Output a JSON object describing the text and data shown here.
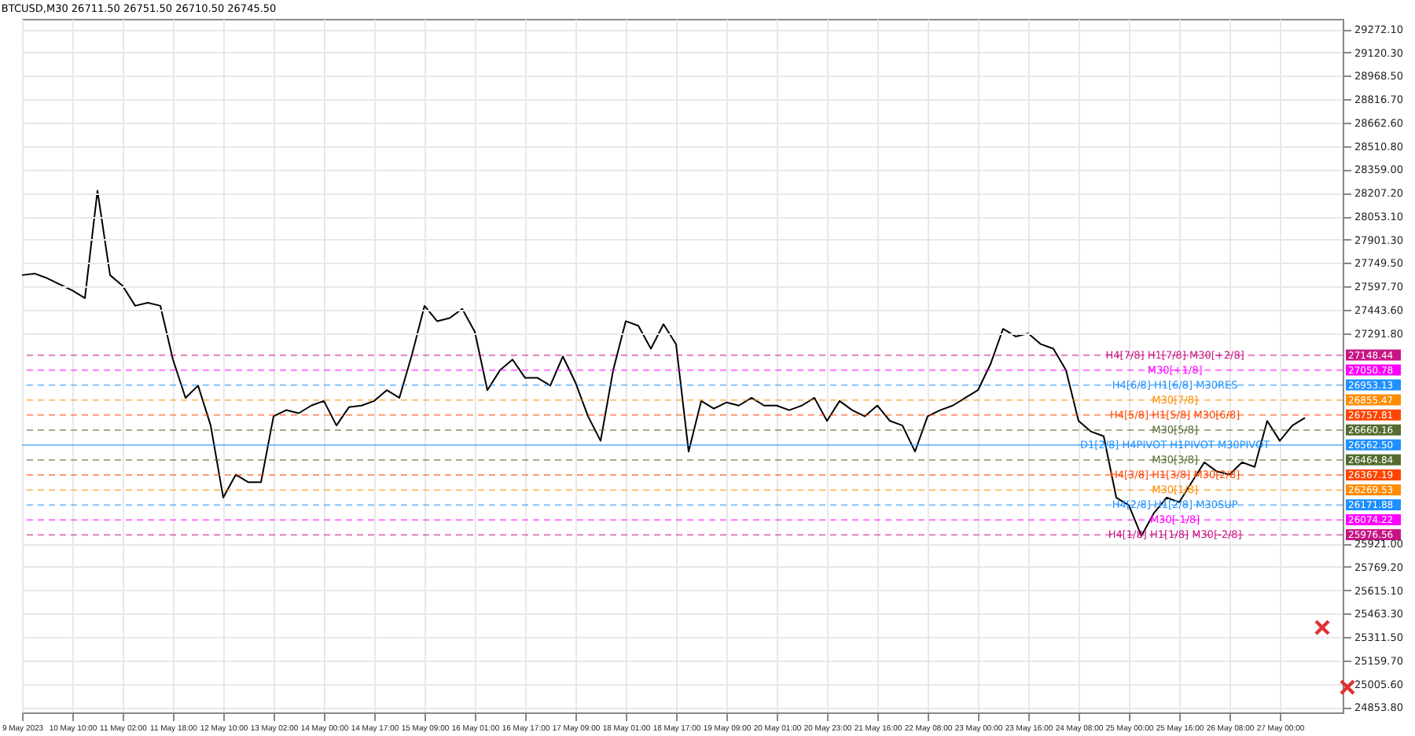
{
  "chart_data": {
    "type": "line",
    "title": "BTCUSD,M30  26711.50 26751.50 26710.50 26745.50",
    "categories": [
      "9 May 2023",
      null,
      null,
      null,
      "10 May 10:00",
      null,
      null,
      null,
      "11 May 02:00",
      null,
      null,
      null,
      "11 May 18:00",
      null,
      null,
      null,
      "12 May 10:00",
      null,
      null,
      null,
      "13 May 02:00",
      null,
      null,
      null,
      "14 May 00:00",
      null,
      null,
      null,
      "14 May 17:00",
      null,
      null,
      null,
      "15 May 09:00",
      null,
      null,
      null,
      "16 May 01:00",
      null,
      null,
      null,
      "16 May 17:00",
      null,
      null,
      null,
      "17 May 09:00",
      null,
      null,
      null,
      "18 May 01:00",
      null,
      null,
      null,
      "18 May 17:00",
      null,
      null,
      null,
      "19 May 09:00",
      null,
      null,
      null,
      "20 May 01:00",
      null,
      null,
      null,
      "20 May 23:00",
      null,
      null,
      null,
      "21 May 16:00",
      null,
      null,
      null,
      "22 May 08:00",
      null,
      null,
      null,
      "23 May 00:00",
      null,
      null,
      null,
      "23 May 16:00",
      null,
      null,
      null,
      "24 May 08:00",
      null,
      null,
      null,
      "25 May 00:00",
      null,
      null,
      null,
      "25 May 16:00",
      null,
      null,
      null,
      "26 May 08:00",
      null,
      null,
      null,
      "27 May 00:00",
      null,
      null,
      null,
      null,
      null
    ],
    "series": [
      {
        "color": "#000000",
        "values": [
          27670,
          27680,
          27650,
          27610,
          27570,
          27520,
          28220,
          27670,
          27600,
          27470,
          27490,
          27470,
          27120,
          26870,
          26950,
          26690,
          26220,
          26370,
          26320,
          26320,
          26750,
          26790,
          26770,
          26820,
          26850,
          26690,
          26810,
          26820,
          26850,
          26920,
          26870,
          27150,
          27470,
          27370,
          27390,
          27450,
          27300,
          26920,
          27050,
          27120,
          27000,
          27000,
          26950,
          27140,
          26970,
          26750,
          26590,
          27050,
          27370,
          27340,
          27190,
          27350,
          27220,
          26520,
          26850,
          26800,
          26840,
          26820,
          26870,
          26820,
          26820,
          26790,
          26820,
          26870,
          26720,
          26850,
          26790,
          26750,
          26820,
          26720,
          26690,
          26520,
          26750,
          26790,
          26820,
          26870,
          26920,
          27090,
          27320,
          27270,
          27290,
          27220,
          27190,
          27050,
          26720,
          26650,
          26620,
          26220,
          26170,
          25970,
          26120,
          26220,
          26190,
          26320,
          26450,
          26390,
          26370,
          26450,
          26420,
          26720,
          26590,
          26690,
          26740,
          null,
          null,
          null
        ]
      }
    ],
    "ylim": [
      24820,
      29340
    ],
    "yticks": [
      {
        "value": 29272.1,
        "label": "29272.10"
      },
      {
        "value": 29120.3,
        "label": "29120.30"
      },
      {
        "value": 28968.5,
        "label": "28968.50"
      },
      {
        "value": 28816.7,
        "label": "28816.70"
      },
      {
        "value": 28662.6,
        "label": "28662.60"
      },
      {
        "value": 28510.8,
        "label": "28510.80"
      },
      {
        "value": 28359,
        "label": "28359.00"
      },
      {
        "value": 28207.2,
        "label": "28207.20"
      },
      {
        "value": 28053.1,
        "label": "28053.10"
      },
      {
        "value": 27901.3,
        "label": "27901.30"
      },
      {
        "value": 27749.5,
        "label": "27749.50"
      },
      {
        "value": 27597.7,
        "label": "27597.70"
      },
      {
        "value": 27443.6,
        "label": "27443.60"
      },
      {
        "value": 27291.8,
        "label": "27291.80"
      },
      {
        "value": 25921,
        "label": "25921.00"
      },
      {
        "value": 25769.2,
        "label": "25769.20"
      },
      {
        "value": 25615.1,
        "label": "25615.10"
      },
      {
        "value": 25463.3,
        "label": "25463.30"
      },
      {
        "value": 25311.5,
        "label": "25311.50"
      },
      {
        "value": 25159.7,
        "label": "25159.70"
      },
      {
        "value": 25005.6,
        "label": "25005.60"
      },
      {
        "value": 24853.8,
        "label": "24853.80"
      }
    ],
    "grid": true,
    "ref_lines": [
      {
        "axis": "y",
        "value": 27148.44,
        "label": "H4[7/8] H1[7/8] M30[+2/8]",
        "color": "#c71585",
        "line_style": "dashed"
      },
      {
        "axis": "y",
        "value": 27050.78,
        "label": "M30[+1/8]",
        "color": "#ff00ff",
        "line_style": "dashed"
      },
      {
        "axis": "y",
        "value": 26953.13,
        "label": "H4[6/8] H1[6/8] M30RES",
        "color": "#1e90ff",
        "line_style": "dashed"
      },
      {
        "axis": "y",
        "value": 26855.47,
        "label": "M30[7/8]",
        "color": "#ff8c00",
        "line_style": "dashed"
      },
      {
        "axis": "y",
        "value": 26757.81,
        "label": "H4[5/8] H1[5/8] M30[6/8]",
        "color": "#ff4500",
        "line_style": "dashed"
      },
      {
        "axis": "y",
        "value": 26660.16,
        "label": "M30[5/8]",
        "color": "#556b2f",
        "line_style": "dashed"
      },
      {
        "axis": "y",
        "value": 26562.5,
        "label": "D1[2/8] H4PIVOT H1PIVOT M30PIVOT",
        "color": "#1e90ff",
        "line_style": "solid"
      },
      {
        "axis": "y",
        "value": 26464.84,
        "label": "M30[3/8]",
        "color": "#556b2f",
        "line_style": "dashed"
      },
      {
        "axis": "y",
        "value": 26367.19,
        "label": "H4[3/8] H1[3/8] M30[2/8]",
        "color": "#ff4500",
        "line_style": "dashed"
      },
      {
        "axis": "y",
        "value": 26269.53,
        "label": "M30[1/8]",
        "color": "#ff8c00",
        "line_style": "dashed"
      },
      {
        "axis": "y",
        "value": 26171.88,
        "label": "H4[2/8] H1[2/8] M30SUP",
        "color": "#1e90ff",
        "line_style": "dashed"
      },
      {
        "axis": "y",
        "value": 26074.22,
        "label": "M30[-1/8]",
        "color": "#ff00ff",
        "line_style": "dashed"
      },
      {
        "axis": "y",
        "value": 25976.56,
        "label": "H4[1/8] H1[1/8] M30[-2/8]",
        "color": "#c71585",
        "line_style": "dashed"
      }
    ],
    "annotations": [
      "27148.44",
      "27050.78",
      "26953.13",
      "26855.47",
      "26757.81",
      "26660.16",
      "26562.50",
      "26464.84",
      "26367.19",
      "26269.53",
      "26171.88",
      "26074.22",
      "25976.56"
    ]
  }
}
